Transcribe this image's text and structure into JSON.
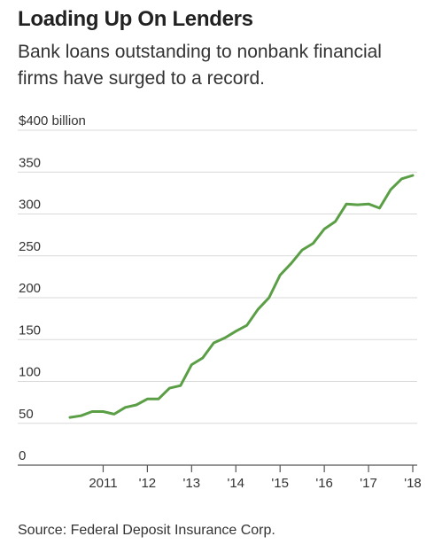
{
  "title": "Loading Up On Lenders",
  "subtitle": "Bank loans outstanding to nonbank financial firms have surged to a record.",
  "source": "Source: Federal Deposit Insurance Corp.",
  "colors": {
    "line": "#5a9e45",
    "grid": "#d9d9d9",
    "text": "#333333"
  },
  "chart_data": {
    "type": "line",
    "title": "Loading Up On Lenders",
    "subtitle": "Bank loans outstanding to nonbank financial firms have surged to a record.",
    "xlabel": "",
    "ylabel": "",
    "ylim": [
      0,
      400
    ],
    "xlim": [
      2010.2,
      2018.1
    ],
    "grid": true,
    "y_ticks": [
      {
        "value": 400,
        "label": "$400 billion"
      },
      {
        "value": 350,
        "label": "350"
      },
      {
        "value": 300,
        "label": "300"
      },
      {
        "value": 250,
        "label": "250"
      },
      {
        "value": 200,
        "label": "200"
      },
      {
        "value": 150,
        "label": "150"
      },
      {
        "value": 100,
        "label": "100"
      },
      {
        "value": 50,
        "label": "50"
      },
      {
        "value": 0,
        "label": "0"
      }
    ],
    "x_ticks": [
      {
        "value": 2011,
        "label": "2011"
      },
      {
        "value": 2012,
        "label": "'12"
      },
      {
        "value": 2013,
        "label": "'13"
      },
      {
        "value": 2014,
        "label": "'14"
      },
      {
        "value": 2015,
        "label": "'15"
      },
      {
        "value": 2016,
        "label": "'16"
      },
      {
        "value": 2017,
        "label": "'17"
      },
      {
        "value": 2018,
        "label": "'18"
      }
    ],
    "series": [
      {
        "x": [
          2010.25,
          2010.5,
          2010.75,
          2011.0,
          2011.25,
          2011.5,
          2011.75,
          2012.0,
          2012.25,
          2012.5,
          2012.75,
          2013.0,
          2013.25,
          2013.5,
          2013.75,
          2014.0,
          2014.25,
          2014.5,
          2014.75,
          2015.0,
          2015.25,
          2015.5,
          2015.75,
          2016.0,
          2016.25,
          2016.5,
          2016.75,
          2017.0,
          2017.25,
          2017.5,
          2017.75,
          2018.0
        ],
        "y": [
          57,
          59,
          64,
          64,
          61,
          69,
          72,
          79,
          79,
          92,
          95,
          120,
          128,
          146,
          152,
          160,
          167,
          186,
          200,
          227,
          241,
          257,
          265,
          282,
          291,
          312,
          311,
          312,
          307,
          329,
          342,
          346
        ]
      }
    ]
  }
}
